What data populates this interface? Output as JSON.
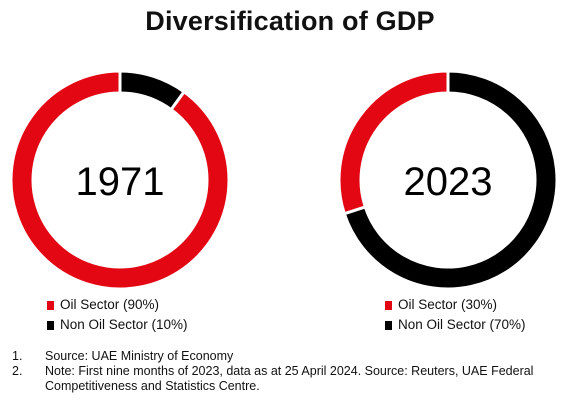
{
  "title": "Diversification of GDP",
  "colors": {
    "oil": "#e30613",
    "non_oil": "#000000",
    "gap": "#ffffff"
  },
  "chart_data": [
    {
      "type": "pie",
      "center_label": "1971",
      "slices": [
        {
          "name": "Oil Sector (90%)",
          "value": 90,
          "color": "#e30613"
        },
        {
          "name": "Non Oil Sector (10%)",
          "value": 10,
          "color": "#000000"
        }
      ]
    },
    {
      "type": "pie",
      "center_label": "2023",
      "slices": [
        {
          "name": "Oil Sector (30%)",
          "value": 30,
          "color": "#e30613"
        },
        {
          "name": "Non Oil Sector (70%)",
          "value": 70,
          "color": "#000000"
        }
      ]
    }
  ],
  "notes": [
    {
      "num": "1.",
      "text": "Source: UAE Ministry of Economy"
    },
    {
      "num": "2.",
      "text": "Note: First nine months of 2023, data as at 25 April 2024. Source: Reuters, UAE Federal Competitiveness and Statistics Centre."
    }
  ]
}
